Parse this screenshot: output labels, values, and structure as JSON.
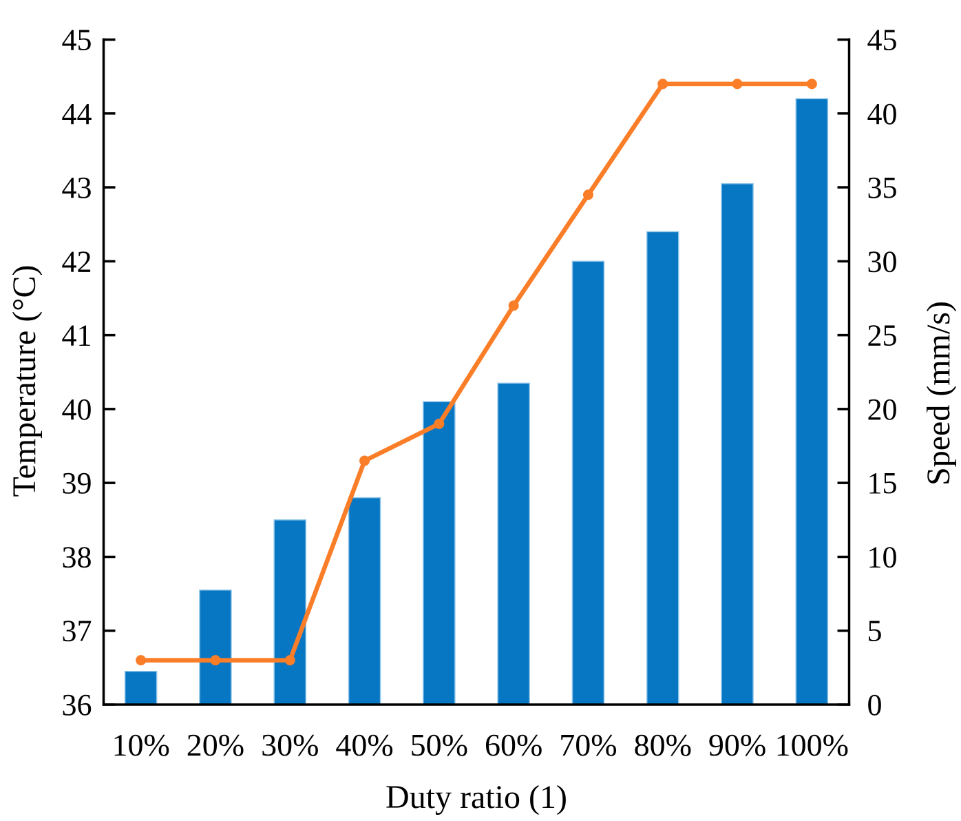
{
  "chart_data": {
    "type": "bar",
    "subtype": "bar-line combo with dual y-axes",
    "title": "",
    "categories": [
      "10%",
      "20%",
      "30%",
      "40%",
      "50%",
      "60%",
      "70%",
      "80%",
      "90%",
      "100%"
    ],
    "series": [
      {
        "name": "Temperature",
        "chart_type": "bar",
        "axis": "left",
        "color": "#0776C3",
        "bar_edge_color": "#8CC4E8",
        "values": [
          36.45,
          37.55,
          38.5,
          38.8,
          40.1,
          40.35,
          42.0,
          42.4,
          43.05,
          44.2
        ]
      },
      {
        "name": "Speed",
        "chart_type": "line",
        "axis": "right",
        "color": "#FA7D28",
        "marker": "circle",
        "values": [
          3,
          3,
          3,
          16.5,
          19,
          27,
          34.5,
          42,
          42,
          42
        ]
      }
    ],
    "x_axis": {
      "label": "Duty ratio (1)",
      "tick_labels": [
        "10%",
        "20%",
        "30%",
        "40%",
        "50%",
        "60%",
        "70%",
        "80%",
        "90%",
        "100%"
      ]
    },
    "left_axis": {
      "label": "Temperature (°C)",
      "min": 36,
      "max": 45,
      "step": 1,
      "tick_labels": [
        "36",
        "37",
        "38",
        "39",
        "40",
        "41",
        "42",
        "43",
        "44",
        "45"
      ]
    },
    "right_axis": {
      "label": "Speed (mm/s)",
      "min": 0,
      "max": 45,
      "step": 5,
      "tick_labels": [
        "0",
        "5",
        "10",
        "15",
        "20",
        "25",
        "30",
        "35",
        "40",
        "45"
      ]
    },
    "legend": "none",
    "grid": false,
    "axis_color": "#000000",
    "background": "#FFFFFF"
  }
}
